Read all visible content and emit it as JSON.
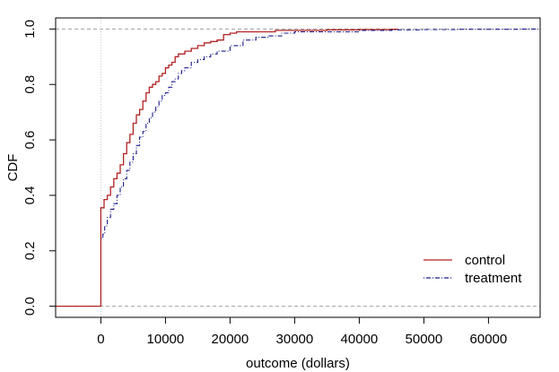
{
  "chart_data": {
    "type": "line",
    "title": "",
    "xlabel": "outcome (dollars)",
    "ylabel": "CDF",
    "xlim": [
      -7000,
      68000
    ],
    "ylim": [
      -0.04,
      1.04
    ],
    "x_ticks": [
      0,
      10000,
      20000,
      30000,
      40000,
      50000,
      60000
    ],
    "y_ticks": [
      0.0,
      0.2,
      0.4,
      0.6,
      0.8,
      1.0
    ],
    "reference_lines": {
      "horizontal": [
        0,
        1
      ],
      "vertical": [
        0
      ],
      "style": "dashed grey"
    },
    "legend": {
      "position": "bottom-right",
      "entries": [
        "control",
        "treatment"
      ]
    },
    "series": [
      {
        "name": "control",
        "color": "#b22222",
        "line_style": "solid",
        "x": [
          -7000,
          0,
          0,
          500,
          1000,
          1500,
          2000,
          2500,
          3000,
          3500,
          4000,
          4500,
          5000,
          5500,
          6000,
          6500,
          7000,
          7500,
          8000,
          8500,
          9000,
          9500,
          10000,
          10500,
          11000,
          11500,
          12000,
          13000,
          14000,
          15000,
          16000,
          17000,
          18000,
          19000,
          20000,
          21000,
          24000,
          27000,
          30000,
          35000,
          40000,
          45000,
          46000
        ],
        "y": [
          0,
          0,
          0.355,
          0.385,
          0.4,
          0.43,
          0.46,
          0.48,
          0.51,
          0.55,
          0.59,
          0.62,
          0.66,
          0.69,
          0.71,
          0.74,
          0.77,
          0.79,
          0.8,
          0.81,
          0.83,
          0.84,
          0.86,
          0.87,
          0.88,
          0.9,
          0.91,
          0.92,
          0.93,
          0.94,
          0.95,
          0.955,
          0.96,
          0.98,
          0.985,
          0.99,
          0.99,
          0.995,
          0.995,
          0.997,
          0.998,
          0.999,
          1.0
        ]
      },
      {
        "name": "treatment",
        "color": "#1a1a8c",
        "line_style": "dashdot",
        "x": [
          0,
          300,
          600,
          1000,
          1500,
          2000,
          2500,
          3000,
          3500,
          4000,
          4500,
          5000,
          5500,
          6000,
          6500,
          7000,
          7500,
          8000,
          8500,
          9000,
          9500,
          10000,
          10500,
          11000,
          11500,
          12000,
          12500,
          13000,
          14000,
          15000,
          16000,
          17000,
          18000,
          20000,
          22000,
          24000,
          26000,
          28000,
          30000,
          35000,
          40000,
          45000,
          50000,
          55000,
          60000,
          65000,
          68000
        ],
        "y": [
          0.245,
          0.26,
          0.29,
          0.32,
          0.35,
          0.37,
          0.4,
          0.43,
          0.46,
          0.49,
          0.52,
          0.55,
          0.58,
          0.61,
          0.63,
          0.66,
          0.68,
          0.7,
          0.72,
          0.74,
          0.76,
          0.77,
          0.79,
          0.81,
          0.82,
          0.84,
          0.85,
          0.86,
          0.88,
          0.89,
          0.9,
          0.91,
          0.92,
          0.94,
          0.96,
          0.97,
          0.975,
          0.985,
          0.99,
          0.99,
          0.995,
          0.997,
          0.998,
          0.999,
          0.999,
          1.0,
          1.0
        ]
      }
    ]
  }
}
